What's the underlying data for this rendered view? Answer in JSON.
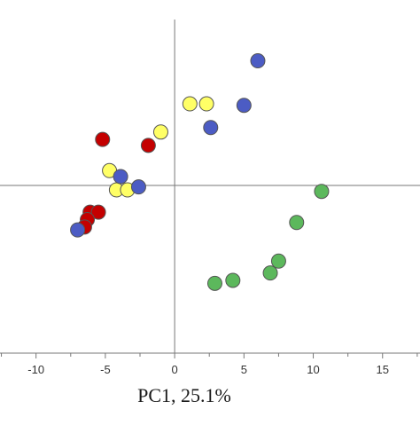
{
  "chart_data": {
    "type": "scatter",
    "title": "",
    "xlabel": "PC1, 25.1%",
    "ylabel": "",
    "xlim": [
      -12.6,
      17.7
    ],
    "ylim": [
      -12.5,
      12.5
    ],
    "xticks": [
      -10,
      -5,
      0,
      5,
      10,
      15
    ],
    "xtick_labels": [
      "-10",
      "-5",
      "0",
      "5",
      "10",
      "15"
    ],
    "grid": false,
    "legend": "none",
    "series": [
      {
        "color": "#c40000",
        "points": [
          {
            "x": -5.2,
            "y": 3.1
          },
          {
            "x": -1.9,
            "y": 2.7
          },
          {
            "x": -6.1,
            "y": -1.8
          },
          {
            "x": -5.5,
            "y": -1.8
          },
          {
            "x": -6.3,
            "y": -2.3
          },
          {
            "x": -6.5,
            "y": -2.8
          }
        ]
      },
      {
        "color": "#ffff66",
        "points": [
          {
            "x": 1.1,
            "y": 5.5
          },
          {
            "x": 2.3,
            "y": 5.5
          },
          {
            "x": -1.0,
            "y": 3.6
          },
          {
            "x": -4.7,
            "y": 1.0
          },
          {
            "x": -4.2,
            "y": -0.3
          },
          {
            "x": -3.4,
            "y": -0.3
          }
        ]
      },
      {
        "color": "#4c5cc4",
        "points": [
          {
            "x": 6.0,
            "y": 8.4
          },
          {
            "x": 5.0,
            "y": 5.4
          },
          {
            "x": 2.6,
            "y": 3.9
          },
          {
            "x": -3.9,
            "y": 0.6
          },
          {
            "x": -2.6,
            "y": -0.1
          },
          {
            "x": -7.0,
            "y": -3.0
          }
        ]
      },
      {
        "color": "#5cb85c",
        "points": [
          {
            "x": 10.6,
            "y": -0.4
          },
          {
            "x": 8.8,
            "y": -2.5
          },
          {
            "x": 7.5,
            "y": -5.1
          },
          {
            "x": 6.9,
            "y": -5.9
          },
          {
            "x": 4.2,
            "y": -6.4
          },
          {
            "x": 2.9,
            "y": -6.6
          }
        ]
      }
    ]
  }
}
